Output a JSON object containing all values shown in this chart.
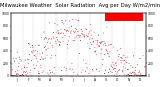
{
  "title": "Milwaukee Weather  Solar Radiation",
  "subtitle": "Avg per Day W/m2/minute",
  "title_fontsize": 3.8,
  "background_color": "#ffffff",
  "plot_bg_color": "#ffffff",
  "x_min": 0,
  "x_max": 365,
  "y_min": 0,
  "y_max": 1000,
  "grid_color": "#aaaaaa",
  "dot_color_main": "#ff0000",
  "dot_color_secondary": "#000000",
  "highlight_color": "#ff0000",
  "y_ticks": [
    0,
    200,
    400,
    600,
    800,
    1000
  ],
  "month_boundaries": [
    1,
    32,
    60,
    91,
    121,
    152,
    182,
    213,
    244,
    274,
    305,
    335,
    365
  ],
  "month_centers": [
    16,
    46,
    75,
    105,
    135,
    166,
    196,
    227,
    258,
    288,
    319,
    349
  ],
  "month_labels": [
    "J",
    "F",
    "M",
    "A",
    "M",
    "J",
    "J",
    "A",
    "S",
    "O",
    "N",
    "D"
  ]
}
